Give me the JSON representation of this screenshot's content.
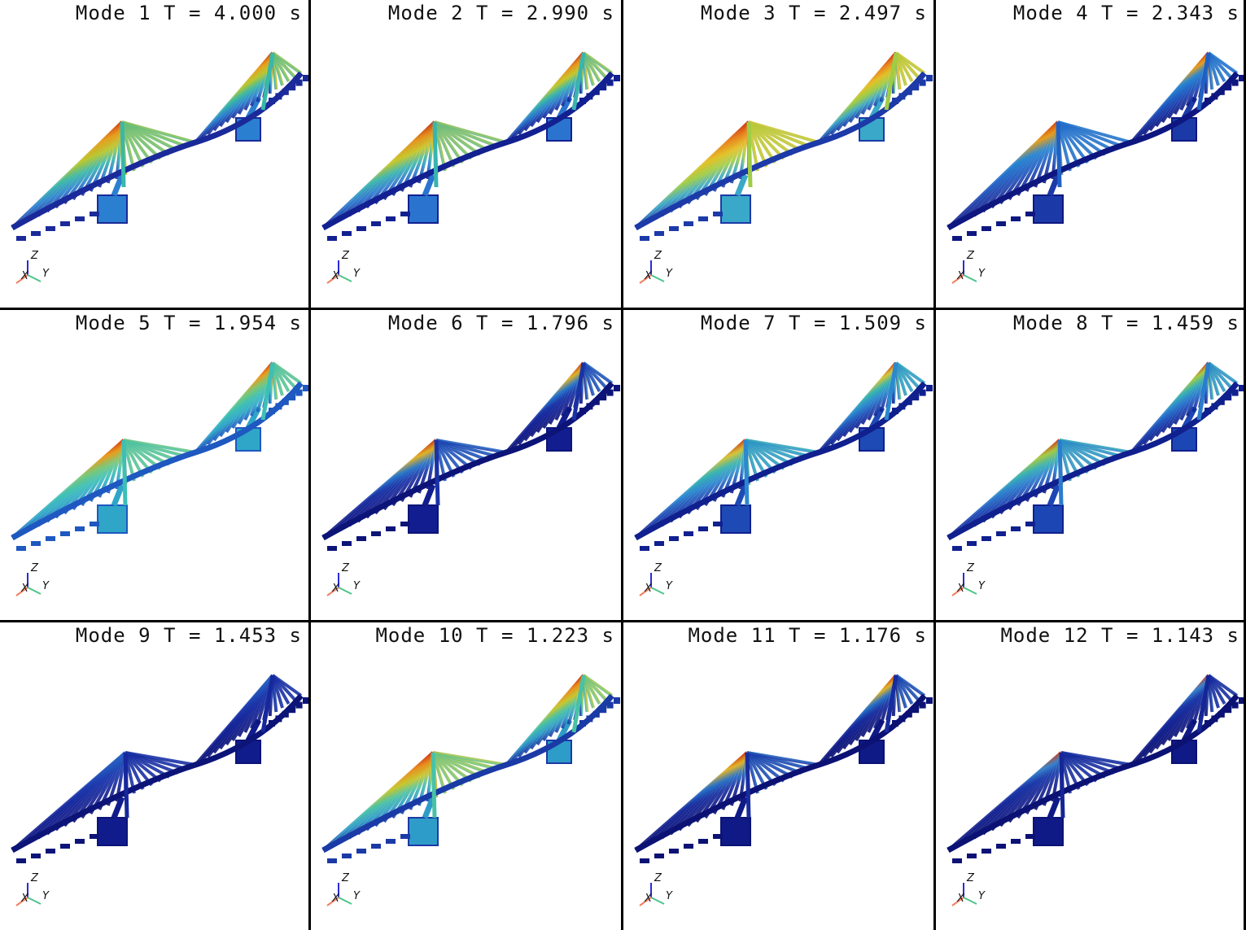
{
  "panels": [
    {
      "mode": 1,
      "title": "Mode 1 T = 4.000 s",
      "palette": [
        "#1b2a9a",
        "#2a7fd0",
        "#38b8a8",
        "#b9c830",
        "#e7a020",
        "#d43a12"
      ]
    },
    {
      "mode": 2,
      "title": "Mode 2 T = 2.990 s",
      "palette": [
        "#122091",
        "#2a74cf",
        "#37b5b0",
        "#c7c92c",
        "#e59420",
        "#c73212"
      ]
    },
    {
      "mode": 3,
      "title": "Mode 3 T = 2.497 s",
      "palette": [
        "#1c3aa8",
        "#3aa8c8",
        "#9ecd46",
        "#e4c228",
        "#e88420",
        "#cf2c12"
      ]
    },
    {
      "mode": 4,
      "title": "Mode 4 T = 2.343 s",
      "palette": [
        "#0e1780",
        "#1b3aa8",
        "#2060c4",
        "#2a88d2",
        "#e7a020",
        "#d43a12"
      ]
    },
    {
      "mode": 5,
      "title": "Mode 5 T = 1.954 s",
      "palette": [
        "#1e58c0",
        "#2fa6c8",
        "#3cc0b6",
        "#78c87a",
        "#e8a020",
        "#d23a14"
      ]
    },
    {
      "mode": 6,
      "title": "Mode 6 T = 1.796 s",
      "palette": [
        "#0c1478",
        "#121e90",
        "#1a32a6",
        "#2a78cc",
        "#e2b428",
        "#cc3010"
      ]
    },
    {
      "mode": 7,
      "title": "Mode 7 T = 1.509 s",
      "palette": [
        "#10208e",
        "#1e4ab6",
        "#2c88d0",
        "#3ab6b2",
        "#d8c63a",
        "#c83a18"
      ]
    },
    {
      "mode": 8,
      "title": "Mode 8 T = 1.459 s",
      "palette": [
        "#10208e",
        "#1c46b4",
        "#2a7ccf",
        "#3ab2b6",
        "#a8cc44",
        "#d23a14"
      ]
    },
    {
      "mode": 9,
      "title": "Mode 9 T = 1.453 s",
      "palette": [
        "#0c1478",
        "#111c8c",
        "#16289c",
        "#1e3aae",
        "#2456bc",
        "#2a66c6"
      ]
    },
    {
      "mode": 10,
      "title": "Mode 10 T = 1.223 s",
      "palette": [
        "#1a3aa6",
        "#2e9cc8",
        "#48c2a6",
        "#c8c830",
        "#e89020",
        "#d22c10"
      ]
    },
    {
      "mode": 11,
      "title": "Mode 11 T = 1.176 s",
      "palette": [
        "#0b1274",
        "#0f1a86",
        "#172c9e",
        "#2872c8",
        "#e4b628",
        "#cc2e10"
      ]
    },
    {
      "mode": 12,
      "title": "Mode 12 T = 1.143 s",
      "palette": [
        "#0b1274",
        "#0f1a86",
        "#152696",
        "#1c3aaa",
        "#3a84cc",
        "#d24418"
      ]
    }
  ],
  "axis_labels": {
    "x": "X",
    "y": "Y",
    "z": "Z"
  }
}
